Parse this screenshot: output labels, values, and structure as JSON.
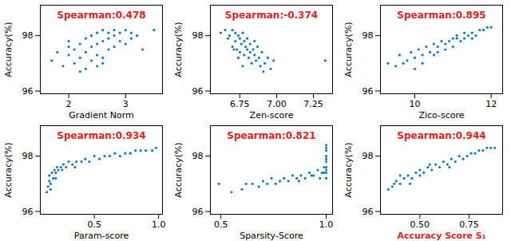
{
  "chart_data": [
    {
      "type": "scatter",
      "title": "Spearman:0.478",
      "x_label": "Gradient Norm",
      "y_label": "Accuracy(%)",
      "color": "#1f77b4",
      "xlim": [
        1.5,
        3.65
      ],
      "xticks": [
        2,
        3
      ],
      "ylim": [
        95.9,
        99.1
      ],
      "yticks": [
        96,
        98
      ],
      "x": [
        1.7,
        1.8,
        1.9,
        2.0,
        2.0,
        2.1,
        2.1,
        2.2,
        2.2,
        2.3,
        2.3,
        2.3,
        2.4,
        2.4,
        2.4,
        2.5,
        2.5,
        2.5,
        2.6,
        2.6,
        2.6,
        2.7,
        2.7,
        2.7,
        2.8,
        2.8,
        2.8,
        2.9,
        2.9,
        3.0,
        3.0,
        3.1,
        3.1,
        3.2,
        3.3,
        3.5,
        2.2,
        2.5,
        2.0,
        2.6
      ],
      "values": [
        97.1,
        97.4,
        96.9,
        97.3,
        97.6,
        97.0,
        97.5,
        97.2,
        97.7,
        96.8,
        97.4,
        97.9,
        97.1,
        97.6,
        98.0,
        97.3,
        97.7,
        98.1,
        97.2,
        97.8,
        98.2,
        97.5,
        97.9,
        98.1,
        97.6,
        98.0,
        98.2,
        97.8,
        98.1,
        97.7,
        98.2,
        97.9,
        98.1,
        98.0,
        97.5,
        98.2,
        96.7,
        96.9,
        97.8,
        97.0
      ]
    },
    {
      "type": "scatter",
      "title": "Spearman:-0.374",
      "x_label": "Zen-score",
      "y_label": "Accuracy(%)",
      "color": "#1f77b4",
      "xlim": [
        6.55,
        7.38
      ],
      "xticks": [
        6.75,
        {
          "value": 7,
          "label": "7.00"
        },
        7.25
      ],
      "ylim": [
        95.9,
        99.1
      ],
      "yticks": [
        96,
        98
      ],
      "x": [
        6.62,
        6.65,
        6.67,
        6.68,
        6.7,
        6.7,
        6.72,
        6.72,
        6.73,
        6.74,
        6.75,
        6.75,
        6.76,
        6.77,
        6.78,
        6.78,
        6.79,
        6.8,
        6.81,
        6.82,
        6.82,
        6.83,
        6.84,
        6.85,
        6.86,
        6.87,
        6.88,
        6.89,
        6.9,
        6.92,
        6.94,
        6.96,
        6.98,
        7.33,
        6.74,
        6.8,
        6.71,
        6.77,
        6.85,
        6.91
      ],
      "values": [
        98.1,
        98.2,
        97.9,
        98.0,
        98.2,
        97.6,
        98.1,
        97.8,
        97.5,
        98.0,
        97.9,
        97.4,
        97.7,
        98.1,
        97.3,
        97.8,
        97.6,
        97.5,
        97.2,
        97.7,
        97.4,
        97.0,
        97.5,
        97.3,
        97.1,
        97.6,
        97.2,
        96.9,
        97.4,
        97.0,
        97.2,
        96.8,
        97.1,
        97.1,
        97.2,
        97.9,
        97.5,
        96.9,
        97.8,
        96.7
      ]
    },
    {
      "type": "scatter",
      "title": "Spearman:0.895",
      "x_label": "Zico-score",
      "y_label": "Accuracy(%)",
      "color": "#1f77b4",
      "xlim": [
        9.1,
        12.3
      ],
      "xticks": [
        10,
        12
      ],
      "ylim": [
        95.9,
        99.1
      ],
      "yticks": [
        96,
        98
      ],
      "x": [
        9.3,
        9.5,
        9.6,
        9.8,
        9.9,
        10.0,
        10.1,
        10.2,
        10.3,
        10.4,
        10.5,
        10.5,
        10.6,
        10.7,
        10.8,
        10.9,
        11.0,
        11.0,
        11.1,
        11.2,
        11.3,
        11.3,
        11.4,
        11.5,
        11.6,
        11.7,
        11.8,
        11.9,
        12.0,
        10.0,
        10.2,
        10.6,
        10.8,
        11.1,
        11.5,
        9.7
      ],
      "values": [
        97.0,
        96.9,
        97.3,
        97.1,
        97.4,
        97.2,
        97.5,
        97.3,
        97.6,
        97.4,
        97.7,
        97.3,
        97.6,
        97.8,
        97.5,
        97.8,
        97.9,
        97.6,
        98.0,
        97.8,
        98.1,
        97.9,
        98.0,
        98.1,
        98.0,
        98.2,
        98.2,
        98.3,
        98.3,
        96.8,
        97.0,
        97.4,
        97.7,
        97.9,
        97.9,
        97.0
      ]
    },
    {
      "type": "scatter",
      "title": "Spearman:0.934",
      "x_label": "Param-score",
      "y_label": "Accuracy(%)",
      "color": "#1f77b4",
      "xlim": [
        0.08,
        1.03
      ],
      "xticks": [
        0.5,
        {
          "value": 1,
          "label": "1.0"
        }
      ],
      "ylim": [
        95.9,
        99.1
      ],
      "yticks": [
        96,
        98
      ],
      "x": [
        0.13,
        0.14,
        0.15,
        0.15,
        0.16,
        0.17,
        0.18,
        0.19,
        0.2,
        0.21,
        0.22,
        0.24,
        0.26,
        0.28,
        0.3,
        0.33,
        0.36,
        0.4,
        0.43,
        0.46,
        0.5,
        0.54,
        0.58,
        0.62,
        0.66,
        0.7,
        0.74,
        0.78,
        0.82,
        0.86,
        0.9,
        0.95,
        0.98,
        0.16,
        0.2,
        0.25,
        0.35
      ],
      "values": [
        96.7,
        96.9,
        97.1,
        97.3,
        97.0,
        97.4,
        97.2,
        97.5,
        97.4,
        97.6,
        97.5,
        97.6,
        97.7,
        97.6,
        97.8,
        97.7,
        97.8,
        97.8,
        97.9,
        97.8,
        98.0,
        97.9,
        98.0,
        98.0,
        98.1,
        98.0,
        98.1,
        98.1,
        98.2,
        98.2,
        98.2,
        98.2,
        98.3,
        96.8,
        97.2,
        97.5,
        97.6
      ]
    },
    {
      "type": "scatter",
      "title": "Spearman:0.821",
      "x_label": "Sparsity-Score",
      "y_label": "Accuracy(%)",
      "color": "#1f77b4",
      "xlim": [
        0.45,
        1.03
      ],
      "xticks": [
        0.5,
        {
          "value": 1,
          "label": "1.0"
        }
      ],
      "ylim": [
        95.9,
        99.1
      ],
      "yticks": [
        96,
        98
      ],
      "x": [
        0.49,
        0.55,
        0.6,
        0.62,
        0.65,
        0.68,
        0.7,
        0.72,
        0.74,
        0.76,
        0.78,
        0.8,
        0.82,
        0.84,
        0.86,
        0.88,
        0.9,
        0.92,
        0.94,
        0.96,
        0.98,
        1.0,
        1.0,
        1.0,
        1.0,
        1.0,
        1.0,
        1.0,
        1.0,
        1.0,
        1.0,
        0.99,
        0.99,
        0.97,
        0.93,
        0.87
      ],
      "values": [
        97.0,
        96.7,
        96.8,
        97.0,
        97.0,
        96.9,
        97.1,
        97.0,
        97.2,
        97.0,
        97.1,
        97.2,
        97.1,
        97.3,
        97.2,
        97.3,
        97.2,
        97.4,
        97.3,
        97.5,
        97.4,
        97.2,
        97.4,
        97.6,
        97.8,
        98.0,
        98.2,
        98.4,
        97.5,
        97.9,
        98.3,
        97.4,
        97.6,
        97.2,
        97.3,
        97.1
      ]
    },
    {
      "type": "scatter",
      "title": "Spearman:0.944",
      "x_label": "Accuracy Score S₁",
      "y_label": "Accuracy(%)",
      "color": "#1f77b4",
      "xlim": [
        0.3,
        0.92
      ],
      "xticks": [
        {
          "value": 0.5,
          "label": "0.50"
        },
        0.75
      ],
      "ylim": [
        95.9,
        99.1
      ],
      "yticks": [
        96,
        98
      ],
      "x": [
        0.34,
        0.36,
        0.38,
        0.4,
        0.42,
        0.44,
        0.46,
        0.48,
        0.5,
        0.52,
        0.54,
        0.56,
        0.58,
        0.6,
        0.62,
        0.64,
        0.66,
        0.68,
        0.7,
        0.72,
        0.74,
        0.76,
        0.78,
        0.8,
        0.82,
        0.84,
        0.86,
        0.88,
        0.4,
        0.45,
        0.5,
        0.55,
        0.65,
        0.37
      ],
      "values": [
        96.8,
        96.9,
        97.1,
        97.0,
        97.2,
        97.3,
        97.2,
        97.4,
        97.5,
        97.4,
        97.6,
        97.5,
        97.7,
        97.6,
        97.8,
        97.7,
        97.9,
        97.8,
        98.0,
        97.9,
        98.0,
        98.1,
        98.1,
        98.2,
        98.2,
        98.3,
        98.3,
        98.3,
        97.3,
        97.0,
        97.3,
        97.7,
        97.6,
        97.0
      ]
    }
  ]
}
